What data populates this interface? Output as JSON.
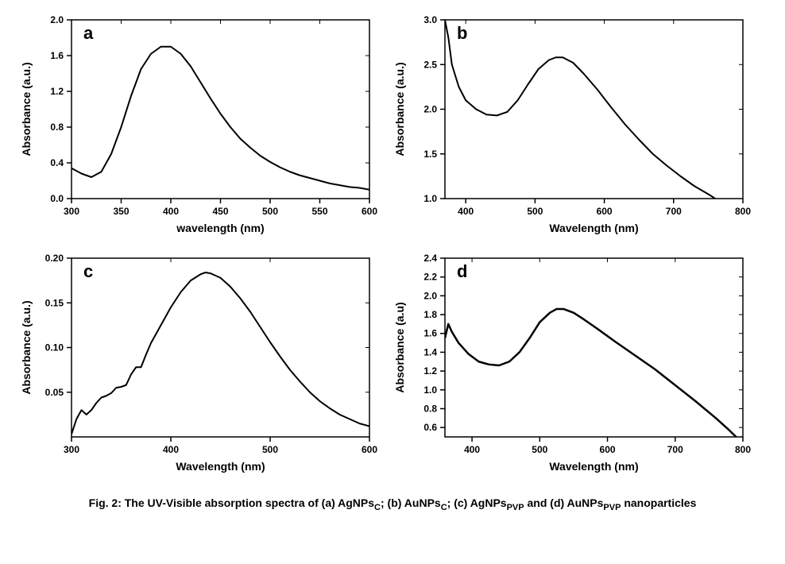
{
  "caption_html": "Fig. 2: The UV-Visible absorption spectra of (a) AgNPs<sub>C</sub>; (b) AuNPs<sub>C</sub>; (c) AgNPs<sub>PVP</sub> and (d) AuNPs<sub>PVP</sub> nanoparticles",
  "colors": {
    "background": "#ffffff",
    "axis": "#000000",
    "line": "#000000",
    "text": "#000000"
  },
  "typography": {
    "axis_label_fontsize": 14,
    "axis_label_fontweight": "bold",
    "tick_fontsize": 12,
    "tick_fontweight": "bold",
    "panel_letter_fontsize": 22,
    "panel_letter_fontweight": "bold",
    "caption_fontsize": 14,
    "caption_fontweight": "bold",
    "font_family": "Arial"
  },
  "panels": {
    "a": {
      "letter": "a",
      "type": "line",
      "xlabel": "wavelength (nm)",
      "ylabel": "Absorbance (a.u.)",
      "xlim": [
        300,
        600
      ],
      "ylim": [
        0.0,
        2.0
      ],
      "xticks": [
        300,
        350,
        400,
        450,
        500,
        550,
        600
      ],
      "yticks": [
        0.0,
        0.4,
        0.8,
        1.2,
        1.6,
        2.0
      ],
      "xtick_labels": [
        "300",
        "350",
        "400",
        "450",
        "500",
        "550",
        "600"
      ],
      "ytick_labels": [
        "0.0",
        "0.4",
        "0.8",
        "1.2",
        "1.6",
        "2.0"
      ],
      "line_width": 2,
      "data": [
        [
          300,
          0.34
        ],
        [
          310,
          0.28
        ],
        [
          320,
          0.24
        ],
        [
          330,
          0.3
        ],
        [
          340,
          0.5
        ],
        [
          350,
          0.8
        ],
        [
          360,
          1.15
        ],
        [
          370,
          1.45
        ],
        [
          380,
          1.62
        ],
        [
          390,
          1.7
        ],
        [
          400,
          1.7
        ],
        [
          410,
          1.62
        ],
        [
          420,
          1.48
        ],
        [
          430,
          1.3
        ],
        [
          440,
          1.12
        ],
        [
          450,
          0.95
        ],
        [
          460,
          0.8
        ],
        [
          470,
          0.67
        ],
        [
          480,
          0.57
        ],
        [
          490,
          0.48
        ],
        [
          500,
          0.41
        ],
        [
          510,
          0.35
        ],
        [
          520,
          0.3
        ],
        [
          530,
          0.26
        ],
        [
          540,
          0.23
        ],
        [
          550,
          0.2
        ],
        [
          560,
          0.17
        ],
        [
          570,
          0.15
        ],
        [
          580,
          0.13
        ],
        [
          590,
          0.12
        ],
        [
          600,
          0.1
        ]
      ]
    },
    "b": {
      "letter": "b",
      "type": "line",
      "xlabel": "Wavelength (nm)",
      "ylabel": "Absorbance (a.u.)",
      "xlim": [
        370,
        800
      ],
      "ylim": [
        1.0,
        3.0
      ],
      "xticks": [
        400,
        500,
        600,
        700,
        800
      ],
      "yticks": [
        1.0,
        1.5,
        2.0,
        2.5,
        3.0
      ],
      "xtick_labels": [
        "400",
        "500",
        "600",
        "700",
        "800"
      ],
      "ytick_labels": [
        "1.0",
        "1.5",
        "2.0",
        "2.5",
        "3.0"
      ],
      "line_width": 2,
      "data": [
        [
          370,
          3.0
        ],
        [
          375,
          2.8
        ],
        [
          380,
          2.5
        ],
        [
          390,
          2.25
        ],
        [
          400,
          2.1
        ],
        [
          415,
          2.0
        ],
        [
          430,
          1.94
        ],
        [
          445,
          1.93
        ],
        [
          460,
          1.97
        ],
        [
          475,
          2.1
        ],
        [
          490,
          2.28
        ],
        [
          505,
          2.45
        ],
        [
          520,
          2.55
        ],
        [
          530,
          2.58
        ],
        [
          540,
          2.58
        ],
        [
          555,
          2.52
        ],
        [
          570,
          2.4
        ],
        [
          590,
          2.22
        ],
        [
          610,
          2.02
        ],
        [
          630,
          1.83
        ],
        [
          650,
          1.66
        ],
        [
          670,
          1.5
        ],
        [
          690,
          1.37
        ],
        [
          710,
          1.25
        ],
        [
          730,
          1.14
        ],
        [
          750,
          1.05
        ],
        [
          760,
          1.0
        ]
      ]
    },
    "c": {
      "letter": "c",
      "type": "line",
      "xlabel": "Wavelength (nm)",
      "ylabel": "Absorbance (a.u.)",
      "xlim": [
        300,
        600
      ],
      "ylim": [
        0.0,
        0.2
      ],
      "xticks": [
        300,
        400,
        500,
        600
      ],
      "yticks": [
        0.05,
        0.1,
        0.15,
        0.2
      ],
      "xtick_labels": [
        "300",
        "400",
        "500",
        "600"
      ],
      "ytick_labels": [
        "0.05",
        "0.10",
        "0.15",
        "0.20"
      ],
      "line_width": 2,
      "data": [
        [
          300,
          0.003
        ],
        [
          305,
          0.02
        ],
        [
          310,
          0.03
        ],
        [
          315,
          0.025
        ],
        [
          320,
          0.03
        ],
        [
          325,
          0.038
        ],
        [
          330,
          0.044
        ],
        [
          335,
          0.046
        ],
        [
          340,
          0.049
        ],
        [
          345,
          0.055
        ],
        [
          350,
          0.056
        ],
        [
          355,
          0.058
        ],
        [
          360,
          0.07
        ],
        [
          365,
          0.078
        ],
        [
          370,
          0.078
        ],
        [
          375,
          0.092
        ],
        [
          380,
          0.105
        ],
        [
          390,
          0.125
        ],
        [
          400,
          0.145
        ],
        [
          410,
          0.162
        ],
        [
          420,
          0.175
        ],
        [
          430,
          0.182
        ],
        [
          435,
          0.184
        ],
        [
          440,
          0.183
        ],
        [
          450,
          0.178
        ],
        [
          460,
          0.168
        ],
        [
          470,
          0.155
        ],
        [
          480,
          0.14
        ],
        [
          490,
          0.123
        ],
        [
          500,
          0.106
        ],
        [
          510,
          0.09
        ],
        [
          520,
          0.075
        ],
        [
          530,
          0.062
        ],
        [
          540,
          0.05
        ],
        [
          550,
          0.04
        ],
        [
          560,
          0.032
        ],
        [
          570,
          0.025
        ],
        [
          580,
          0.02
        ],
        [
          590,
          0.015
        ],
        [
          600,
          0.012
        ]
      ]
    },
    "d": {
      "letter": "d",
      "type": "line",
      "xlabel": "Wavelength (nm)",
      "ylabel": "Absorbance (a.u)",
      "xlim": [
        360,
        800
      ],
      "ylim": [
        0.5,
        2.4
      ],
      "xticks": [
        400,
        500,
        600,
        700,
        800
      ],
      "yticks": [
        0.6,
        0.8,
        1.0,
        1.2,
        1.4,
        1.6,
        1.8,
        2.0,
        2.2,
        2.4
      ],
      "xtick_labels": [
        "400",
        "500",
        "600",
        "700",
        "800"
      ],
      "ytick_labels": [
        "0.6",
        "0.8",
        "1.0",
        "1.2",
        "1.4",
        "1.6",
        "1.8",
        "2.0",
        "2.2",
        "2.4"
      ],
      "line_width": 2.5,
      "data": [
        [
          360,
          1.55
        ],
        [
          365,
          1.7
        ],
        [
          370,
          1.62
        ],
        [
          380,
          1.5
        ],
        [
          395,
          1.38
        ],
        [
          410,
          1.3
        ],
        [
          425,
          1.27
        ],
        [
          440,
          1.26
        ],
        [
          455,
          1.3
        ],
        [
          470,
          1.4
        ],
        [
          485,
          1.55
        ],
        [
          500,
          1.72
        ],
        [
          515,
          1.82
        ],
        [
          525,
          1.86
        ],
        [
          535,
          1.86
        ],
        [
          550,
          1.82
        ],
        [
          565,
          1.75
        ],
        [
          585,
          1.65
        ],
        [
          610,
          1.52
        ],
        [
          640,
          1.37
        ],
        [
          670,
          1.22
        ],
        [
          700,
          1.05
        ],
        [
          730,
          0.88
        ],
        [
          760,
          0.7
        ],
        [
          780,
          0.57
        ],
        [
          790,
          0.5
        ]
      ]
    }
  }
}
